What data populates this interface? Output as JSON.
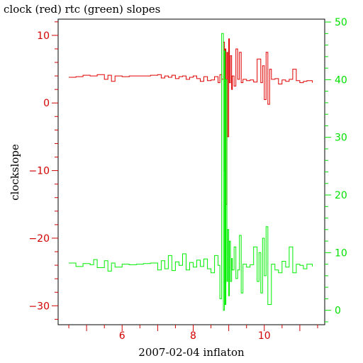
{
  "chart_data": {
    "type": "line",
    "title": "clock (red) rtc (green) slopes",
    "xlabel": "2007-02-04 inflaton",
    "ylabel": "clockslope",
    "xlim": [
      4.2,
      11.7
    ],
    "ylim": [
      -32.8,
      12.4
    ],
    "y2lim": [
      -2.5,
      50.5
    ],
    "x_ticks": [
      6,
      8,
      10
    ],
    "y_ticks": [
      10,
      0,
      -10,
      -20,
      -30
    ],
    "y_tick_labels": [
      "10",
      "0",
      "−10",
      "−20",
      "−30"
    ],
    "y2_ticks": [
      50,
      40,
      30,
      20,
      10,
      0
    ],
    "grid": false,
    "colors": {
      "left_axis": "#d10000",
      "right_axis": "#00e000",
      "clock": "#e00000",
      "rtc": "#00ee00"
    },
    "series": [
      {
        "axis": "left",
        "color": "#e00000",
        "x": [
          4.5,
          4.7,
          4.9,
          5.1,
          5.3,
          5.5,
          5.6,
          5.7,
          5.8,
          6.0,
          6.2,
          6.4,
          6.6,
          6.8,
          7.0,
          7.1,
          7.2,
          7.3,
          7.4,
          7.5,
          7.6,
          7.7,
          7.8,
          7.9,
          8.0,
          8.1,
          8.2,
          8.3,
          8.4,
          8.5,
          8.6,
          8.7,
          8.75,
          8.8,
          8.85,
          8.88,
          8.9,
          8.92,
          8.95,
          8.97,
          9.0,
          9.02,
          9.05,
          9.08,
          9.1,
          9.15,
          9.2,
          9.25,
          9.3,
          9.35,
          9.4,
          9.5,
          9.6,
          9.7,
          9.8,
          9.9,
          9.95,
          10.0,
          10.05,
          10.1,
          10.15,
          10.2,
          10.3,
          10.4,
          10.5,
          10.6,
          10.7,
          10.8,
          10.9,
          11.0,
          11.1,
          11.2,
          11.35
        ],
        "y": [
          3.8,
          3.9,
          4.1,
          4.0,
          4.2,
          3.5,
          4.1,
          3.2,
          4.0,
          3.9,
          4.0,
          4.0,
          4.0,
          4.1,
          4.2,
          3.7,
          4.0,
          3.8,
          4.1,
          3.6,
          3.9,
          4.0,
          3.5,
          3.8,
          4.0,
          3.6,
          3.2,
          3.9,
          3.3,
          3.4,
          3.9,
          3.0,
          4.2,
          3.5,
          9.0,
          -10.0,
          8.0,
          -15.0,
          7.5,
          -5.0,
          9.5,
          3.0,
          7.0,
          2.0,
          4.0,
          2.5,
          8.0,
          3.5,
          7.5,
          3.0,
          3.5,
          3.3,
          3.4,
          3.1,
          6.5,
          3.0,
          5.5,
          0.5,
          7.5,
          -0.2,
          5.0,
          3.5,
          3.6,
          2.8,
          3.4,
          3.2,
          3.5,
          5.0,
          3.3,
          3.0,
          3.2,
          3.3,
          3.0
        ]
      },
      {
        "axis": "right",
        "color": "#00ee00",
        "x": [
          4.5,
          4.7,
          4.9,
          5.1,
          5.2,
          5.3,
          5.5,
          5.6,
          5.7,
          5.8,
          6.0,
          6.2,
          6.4,
          6.6,
          6.8,
          7.0,
          7.1,
          7.2,
          7.3,
          7.4,
          7.5,
          7.6,
          7.7,
          7.8,
          7.9,
          8.0,
          8.1,
          8.2,
          8.3,
          8.4,
          8.5,
          8.6,
          8.7,
          8.75,
          8.8,
          8.85,
          8.88,
          8.9,
          8.92,
          8.95,
          8.97,
          9.0,
          9.02,
          9.05,
          9.08,
          9.1,
          9.15,
          9.2,
          9.25,
          9.3,
          9.35,
          9.4,
          9.5,
          9.6,
          9.7,
          9.8,
          9.85,
          9.9,
          9.95,
          10.0,
          10.05,
          10.1,
          10.2,
          10.3,
          10.4,
          10.5,
          10.6,
          10.7,
          10.8,
          10.9,
          11.0,
          11.1,
          11.2,
          11.35
        ],
        "y": [
          8.2,
          7.6,
          8.1,
          7.9,
          8.8,
          7.4,
          8.6,
          6.8,
          8.2,
          7.5,
          8.0,
          7.9,
          8.0,
          8.1,
          8.2,
          7.0,
          8.6,
          7.2,
          9.5,
          6.9,
          8.4,
          7.8,
          9.8,
          7.0,
          8.3,
          7.5,
          8.7,
          7.6,
          8.9,
          7.2,
          6.5,
          9.5,
          7.8,
          2.0,
          48.0,
          0.0,
          45.0,
          1.0,
          40.0,
          5.0,
          14.0,
          2.5,
          12.0,
          5.0,
          9.0,
          7.0,
          11.0,
          5.5,
          7.0,
          13.0,
          3.0,
          8.0,
          7.5,
          7.9,
          11.0,
          5.0,
          10.0,
          3.0,
          12.5,
          6.0,
          14.5,
          1.0,
          8.0,
          7.0,
          6.5,
          8.5,
          7.5,
          11.0,
          6.5,
          8.0,
          7.8,
          7.2,
          8.0,
          7.6
        ]
      }
    ]
  }
}
